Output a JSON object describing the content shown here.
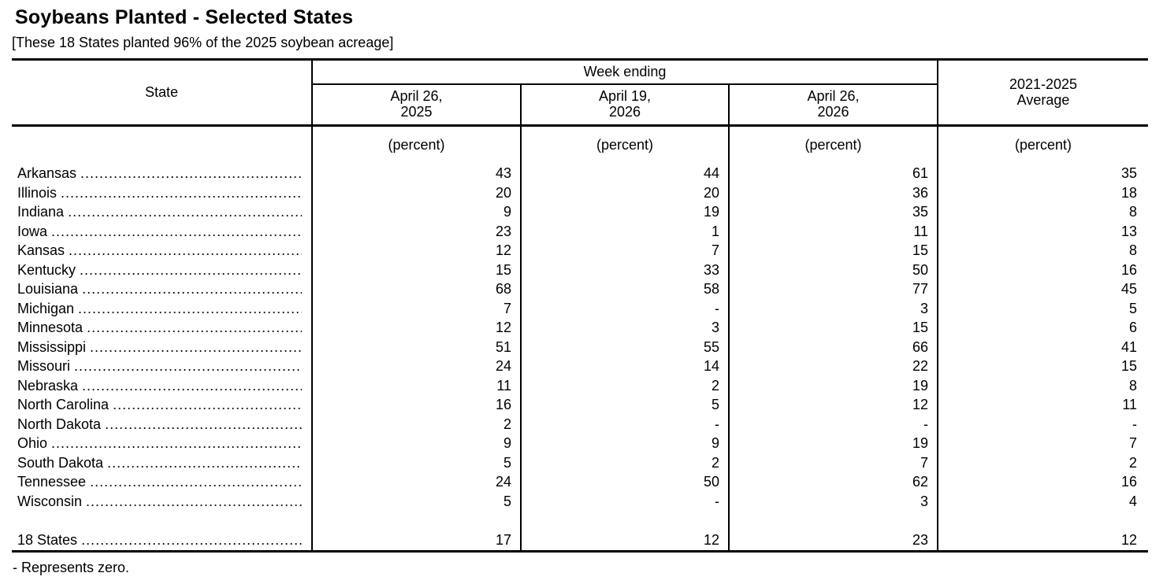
{
  "page": {
    "title": "Soybeans Planted - Selected States",
    "subtitle": "[These 18 States planted 96% of the 2025 soybean acreage]",
    "footnote": "- Represents zero."
  },
  "table": {
    "state_column_header": "State",
    "week_ending_header": "Week ending",
    "date_columns": [
      {
        "line1": "April 26,",
        "line2": "2025"
      },
      {
        "line1": "April 19,",
        "line2": "2026"
      },
      {
        "line1": "April 26,",
        "line2": "2026"
      }
    ],
    "average_header": {
      "line1": "2021-2025",
      "line2": "Average"
    },
    "unit_label": "(percent)",
    "dot_leader": "..........................................................................................",
    "rows": [
      {
        "state": "Arkansas",
        "values": [
          "43",
          "44",
          "61",
          "35"
        ]
      },
      {
        "state": "Illinois",
        "values": [
          "20",
          "20",
          "36",
          "18"
        ]
      },
      {
        "state": "Indiana",
        "values": [
          "9",
          "19",
          "35",
          "8"
        ]
      },
      {
        "state": "Iowa",
        "values": [
          "23",
          "1",
          "11",
          "13"
        ]
      },
      {
        "state": "Kansas",
        "values": [
          "12",
          "7",
          "15",
          "8"
        ]
      },
      {
        "state": "Kentucky",
        "values": [
          "15",
          "33",
          "50",
          "16"
        ]
      },
      {
        "state": "Louisiana",
        "values": [
          "68",
          "58",
          "77",
          "45"
        ]
      },
      {
        "state": "Michigan",
        "values": [
          "7",
          "-",
          "3",
          "5"
        ]
      },
      {
        "state": "Minnesota",
        "values": [
          "12",
          "3",
          "15",
          "6"
        ]
      },
      {
        "state": "Mississippi",
        "values": [
          "51",
          "55",
          "66",
          "41"
        ]
      },
      {
        "state": "Missouri",
        "values": [
          "24",
          "14",
          "22",
          "15"
        ]
      },
      {
        "state": "Nebraska",
        "values": [
          "11",
          "2",
          "19",
          "8"
        ]
      },
      {
        "state": "North Carolina",
        "values": [
          "16",
          "5",
          "12",
          "11"
        ]
      },
      {
        "state": "North Dakota",
        "values": [
          "2",
          "-",
          "-",
          "-"
        ]
      },
      {
        "state": "Ohio",
        "values": [
          "9",
          "9",
          "19",
          "7"
        ]
      },
      {
        "state": "South Dakota",
        "values": [
          "5",
          "2",
          "7",
          "2"
        ]
      },
      {
        "state": "Tennessee",
        "values": [
          "24",
          "50",
          "62",
          "16"
        ]
      },
      {
        "state": "Wisconsin",
        "values": [
          "5",
          "-",
          "3",
          "4"
        ]
      }
    ],
    "total_row": {
      "state": "18 States",
      "values": [
        "17",
        "12",
        "23",
        "12"
      ]
    }
  }
}
